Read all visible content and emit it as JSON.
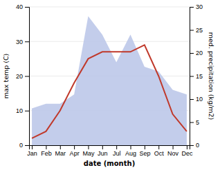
{
  "chart_data": {
    "type": "line",
    "xlabel": "date (month)",
    "ylabel": "max temp (C)",
    "y2label": "med. precipitation (kg/m2)",
    "categories": [
      "Jan",
      "Feb",
      "Mar",
      "Apr",
      "May",
      "Jun",
      "Jul",
      "Aug",
      "Sep",
      "Oct",
      "Nov",
      "Dec"
    ],
    "series": [
      {
        "type": "area",
        "axis": "y2",
        "color": "#b8c4e8",
        "values": [
          8,
          9,
          9,
          11,
          28,
          24,
          18,
          24,
          17,
          16,
          12,
          11
        ]
      },
      {
        "type": "line",
        "color": "#c0392b",
        "values": [
          2,
          4,
          10,
          18,
          25,
          27,
          27,
          27,
          29,
          20,
          9,
          4
        ]
      }
    ],
    "ylim": [
      0,
      40
    ],
    "yticks": [
      0,
      10,
      20,
      30,
      40
    ],
    "y2lim": [
      0,
      30
    ],
    "y2ticks": [
      0,
      5,
      10,
      15,
      20,
      25,
      30
    ],
    "grid": true
  }
}
